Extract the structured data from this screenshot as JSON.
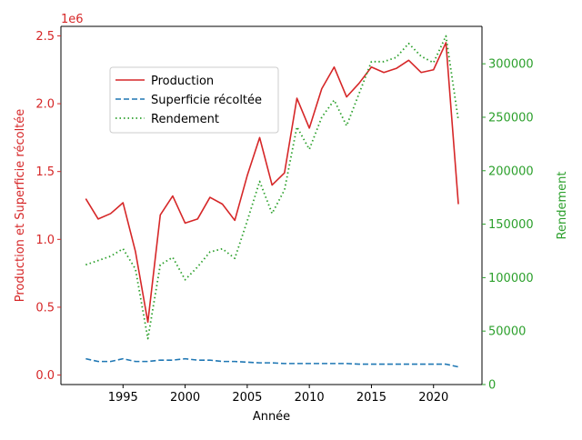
{
  "chart_data": {
    "type": "line",
    "xlabel": "Année",
    "ylabel_left": "Production et Superficie récoltée",
    "ylabel_right": "Rendement",
    "left_axis_multiplier": "1e6",
    "x": [
      1992,
      1993,
      1994,
      1995,
      1996,
      1997,
      1998,
      1999,
      2000,
      2001,
      2002,
      2003,
      2004,
      2005,
      2006,
      2007,
      2008,
      2009,
      2010,
      2011,
      2012,
      2013,
      2014,
      2015,
      2016,
      2017,
      2018,
      2019,
      2020,
      2021,
      2022
    ],
    "xlim": [
      1990,
      2023.9
    ],
    "xticks": [
      1995,
      2000,
      2005,
      2010,
      2015,
      2020
    ],
    "ylim_left": [
      -0.07,
      2.57
    ],
    "yticks_left": [
      0.0,
      0.5,
      1.0,
      1.5,
      2.0,
      2.5
    ],
    "ytick_labels_left": [
      "0.0",
      "0.5",
      "1.0",
      "1.5",
      "2.0",
      "2.5"
    ],
    "ylim_right": [
      0,
      335000
    ],
    "yticks_right": [
      0,
      50000,
      100000,
      150000,
      200000,
      250000,
      300000
    ],
    "ytick_labels_right": [
      "0",
      "50000",
      "100000",
      "150000",
      "200000",
      "250000",
      "300000"
    ],
    "colors": {
      "left_axis": "#d62728",
      "right_axis": "#2ca02c"
    },
    "series": [
      {
        "name": "Production",
        "axis": "left",
        "color": "#d62728",
        "style": "solid",
        "values": [
          1.3,
          1.15,
          1.19,
          1.27,
          0.91,
          0.39,
          1.18,
          1.32,
          1.12,
          1.15,
          1.31,
          1.26,
          1.14,
          1.47,
          1.75,
          1.4,
          1.49,
          2.04,
          1.82,
          2.11,
          2.27,
          2.05,
          2.15,
          2.27,
          2.23,
          2.26,
          2.32,
          2.23,
          2.25,
          2.45,
          1.26
        ]
      },
      {
        "name": "Superficie récoltée",
        "axis": "left",
        "color": "#1f77b4",
        "style": "dashed",
        "values": [
          0.12,
          0.1,
          0.1,
          0.12,
          0.1,
          0.1,
          0.11,
          0.11,
          0.12,
          0.11,
          0.11,
          0.1,
          0.1,
          0.095,
          0.09,
          0.09,
          0.085,
          0.085,
          0.085,
          0.085,
          0.085,
          0.085,
          0.08,
          0.08,
          0.08,
          0.08,
          0.08,
          0.08,
          0.08,
          0.08,
          0.06
        ]
      },
      {
        "name": "Rendement",
        "axis": "right",
        "color": "#2ca02c",
        "style": "dotted",
        "values": [
          112000,
          116000,
          120000,
          127000,
          108000,
          43000,
          112000,
          119000,
          98000,
          110000,
          124000,
          127000,
          118000,
          153000,
          190000,
          160000,
          182000,
          241000,
          220000,
          250000,
          266000,
          242000,
          272000,
          302000,
          302000,
          306000,
          319000,
          307000,
          301000,
          326000,
          247000
        ]
      }
    ]
  }
}
